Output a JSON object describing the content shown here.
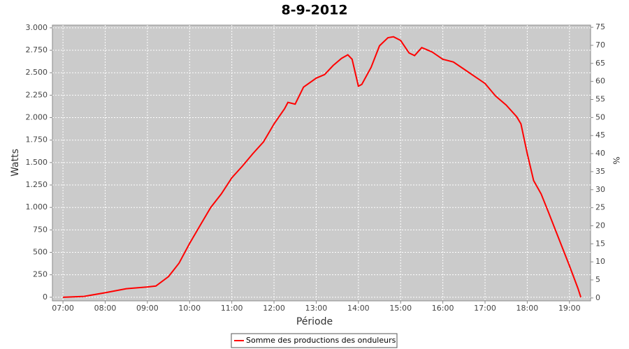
{
  "chart_data": {
    "type": "line",
    "title": "8-9-2012",
    "x_label": "Période",
    "y_label": "Watts",
    "y2_label": "%",
    "x": [
      7.0,
      7.5,
      8.0,
      8.5,
      9.0,
      9.2,
      9.5,
      9.75,
      10.0,
      10.25,
      10.5,
      10.75,
      11.0,
      11.25,
      11.5,
      11.75,
      12.0,
      12.25,
      12.33,
      12.5,
      12.7,
      13.0,
      13.2,
      13.4,
      13.6,
      13.75,
      13.85,
      14.0,
      14.08,
      14.3,
      14.5,
      14.7,
      14.83,
      15.0,
      15.2,
      15.33,
      15.5,
      15.6,
      15.75,
      16.0,
      16.25,
      16.5,
      16.75,
      17.0,
      17.25,
      17.5,
      17.75,
      17.85,
      18.0,
      18.15,
      18.33,
      18.5,
      18.75,
      19.0,
      19.2,
      19.27
    ],
    "series": [
      {
        "name": "Somme des productions des onduleurs",
        "color": "#ff0000",
        "values": [
          0,
          10,
          50,
          95,
          115,
          125,
          230,
          380,
          600,
          800,
          1000,
          1150,
          1330,
          1460,
          1600,
          1730,
          1930,
          2100,
          2170,
          2150,
          2340,
          2440,
          2480,
          2580,
          2660,
          2700,
          2650,
          2350,
          2370,
          2560,
          2800,
          2890,
          2900,
          2860,
          2720,
          2690,
          2780,
          2760,
          2730,
          2650,
          2620,
          2540,
          2460,
          2380,
          2240,
          2140,
          2010,
          1930,
          1600,
          1300,
          1150,
          950,
          650,
          350,
          100,
          0
        ]
      }
    ],
    "xlim": [
      6.75,
      19.5
    ],
    "xticks": [
      {
        "value": 7,
        "label": "07:00"
      },
      {
        "value": 8,
        "label": "08:00"
      },
      {
        "value": 9,
        "label": "09:00"
      },
      {
        "value": 10,
        "label": "10:00"
      },
      {
        "value": 11,
        "label": "11:00"
      },
      {
        "value": 12,
        "label": "12:00"
      },
      {
        "value": 13,
        "label": "13:00"
      },
      {
        "value": 14,
        "label": "14:00"
      },
      {
        "value": 15,
        "label": "15:00"
      },
      {
        "value": 16,
        "label": "16:00"
      },
      {
        "value": 17,
        "label": "17:00"
      },
      {
        "value": 18,
        "label": "18:00"
      },
      {
        "value": 19,
        "label": "19:00"
      }
    ],
    "ylim": [
      -40,
      3030
    ],
    "yticks": [
      0,
      250,
      500,
      750,
      {
        "value": 1000,
        "label": "1.000"
      },
      {
        "value": 1250,
        "label": "1.250"
      },
      {
        "value": 1500,
        "label": "1.500"
      },
      {
        "value": 1750,
        "label": "1.750"
      },
      {
        "value": 2000,
        "label": "2.000"
      },
      {
        "value": 2250,
        "label": "2.250"
      },
      {
        "value": 2500,
        "label": "2.500"
      },
      {
        "value": 2750,
        "label": "2.750"
      },
      {
        "value": 3000,
        "label": "3.000"
      }
    ],
    "y2lim": [
      -0.8,
      75.6
    ],
    "y2ticks": [
      0,
      5,
      10,
      15,
      20,
      25,
      30,
      35,
      40,
      45,
      50,
      55,
      60,
      65,
      70,
      75
    ],
    "grid": true
  }
}
